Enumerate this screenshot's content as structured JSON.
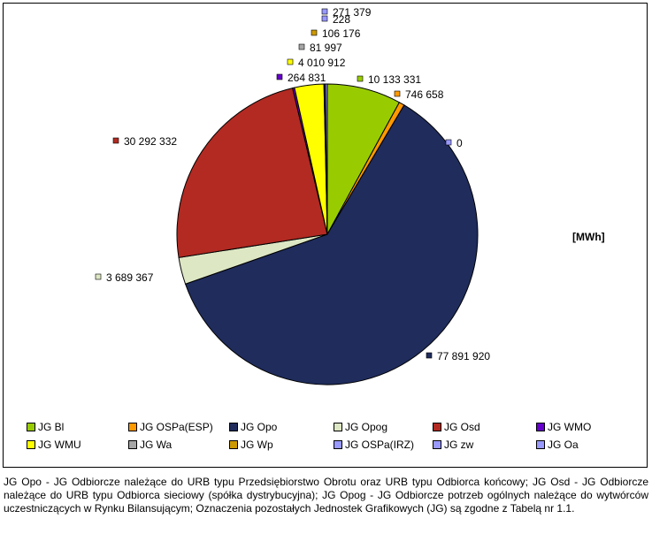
{
  "chart_data": {
    "type": "pie",
    "unit": "[MWh]",
    "slices": [
      {
        "name": "JG Bl",
        "value": 10133331,
        "label": "10 133 331",
        "color": "#99CC00"
      },
      {
        "name": "JG OSPa(ESP)",
        "value": 746658,
        "label": "746 658",
        "color": "#FF9900"
      },
      {
        "name": "JG Opo",
        "value": 77891920,
        "label": "77 891 920",
        "color": "#1F2C5C"
      },
      {
        "name": "JG Opog",
        "value": 3689367,
        "label": "3 689 367",
        "color": "#DDE7C4"
      },
      {
        "name": "JG Osd",
        "value": 30292332,
        "label": "30 292 332",
        "color": "#B22A22"
      },
      {
        "name": "JG WMO",
        "value": 264831,
        "label": "264 831",
        "color": "#6600CC"
      },
      {
        "name": "JG WMU",
        "value": 4010912,
        "label": "4 010 912",
        "color": "#FFFF00"
      },
      {
        "name": "JG Wa",
        "value": 81997,
        "label": "81 997",
        "color": "#A6A6A6"
      },
      {
        "name": "JG Wp",
        "value": 106176,
        "label": "106 176",
        "color": "#CC9900"
      },
      {
        "name": "JG OSPa(IRZ)",
        "value": 228,
        "label": "228",
        "color": "#9999FF"
      },
      {
        "name": "JG zw",
        "value": 271379,
        "label": "271 379",
        "color": "#9999FF"
      },
      {
        "name": "JG Oa",
        "value": 0,
        "label": "0",
        "color": "#9999FF"
      }
    ],
    "legend_placement": "bottom"
  },
  "footnote": "JG Opo - JG Odbiorcze należące do URB typu Przedsiębiorstwo Obrotu oraz URB typu Odbiorca końcowy; JG Osd - JG Odbiorcze należące do URB typu Odbiorca sieciowy (spółka dystrybucyjna); JG Opog - JG Odbiorcze potrzeb ogólnych należące do wytwórców uczestniczących w Rynku Bilansującym; Oznaczenia pozostałych Jednostek Grafikowych (JG) są zgodne z Tabelą nr 1.1."
}
